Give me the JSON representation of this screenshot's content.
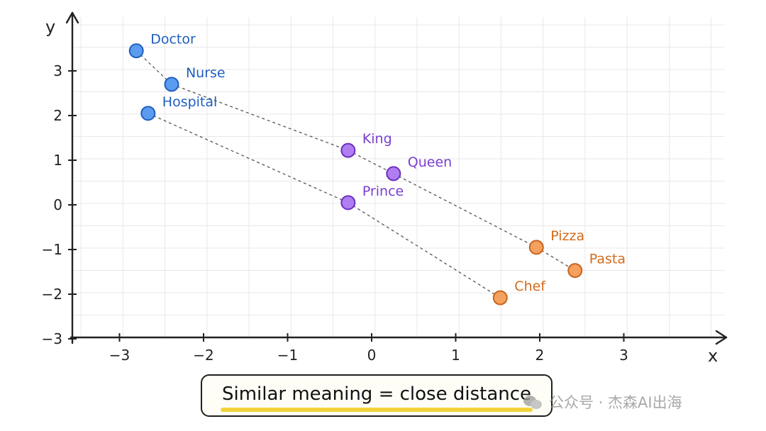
{
  "chart_data": {
    "type": "scatter",
    "xlabel": "x",
    "ylabel": "y",
    "xlim": [
      -3.5,
      4.2
    ],
    "ylim": [
      -3,
      4
    ],
    "xticks": [
      -3,
      -2,
      -1,
      0,
      1,
      2,
      3
    ],
    "yticks": [
      -3,
      -2,
      -1,
      0,
      1,
      2,
      3
    ],
    "xtick_labels": [
      "−3",
      "−2",
      "−1",
      "0",
      "1",
      "2",
      "3"
    ],
    "ytick_labels": [
      "−3",
      "−2",
      "−1",
      "0",
      "1",
      "2",
      "3"
    ],
    "grid": true,
    "points": [
      {
        "label": "Doctor",
        "x": -2.8,
        "y": 3.45,
        "group": "medical"
      },
      {
        "label": "Nurse",
        "x": -2.38,
        "y": 2.7,
        "group": "medical"
      },
      {
        "label": "Hospital",
        "x": -2.66,
        "y": 2.05,
        "group": "medical"
      },
      {
        "label": "King",
        "x": -0.28,
        "y": 1.22,
        "group": "royalty"
      },
      {
        "label": "Queen",
        "x": 0.26,
        "y": 0.7,
        "group": "royalty"
      },
      {
        "label": "Prince",
        "x": -0.28,
        "y": 0.05,
        "group": "royalty"
      },
      {
        "label": "Pizza",
        "x": 1.96,
        "y": -0.95,
        "group": "food"
      },
      {
        "label": "Pasta",
        "x": 2.42,
        "y": -1.47,
        "group": "food"
      },
      {
        "label": "Chef",
        "x": 1.53,
        "y": -2.08,
        "group": "food"
      }
    ],
    "connections": [
      [
        "Doctor",
        "Nurse"
      ],
      [
        "Nurse",
        "King"
      ],
      [
        "King",
        "Queen"
      ],
      [
        "Queen",
        "Pizza"
      ],
      [
        "Pizza",
        "Pasta"
      ],
      [
        "Hospital",
        "Prince"
      ],
      [
        "Prince",
        "Chef"
      ]
    ],
    "colors": {
      "medical": {
        "fill": "#5b9cf0",
        "stroke": "#1f5fbf",
        "text": "#1f5fbf"
      },
      "royalty": {
        "fill": "#b07ef0",
        "stroke": "#6a2fc0",
        "text": "#7a3fd0"
      },
      "food": {
        "fill": "#f4a05e",
        "stroke": "#c8641e",
        "text": "#d46a1a"
      }
    }
  },
  "caption": {
    "text": "Similar meaning = close distance",
    "underline_color": "#f3d23a"
  },
  "watermark": {
    "text": "公众号 · 杰森AI出海",
    "icon": "wechat-icon"
  }
}
